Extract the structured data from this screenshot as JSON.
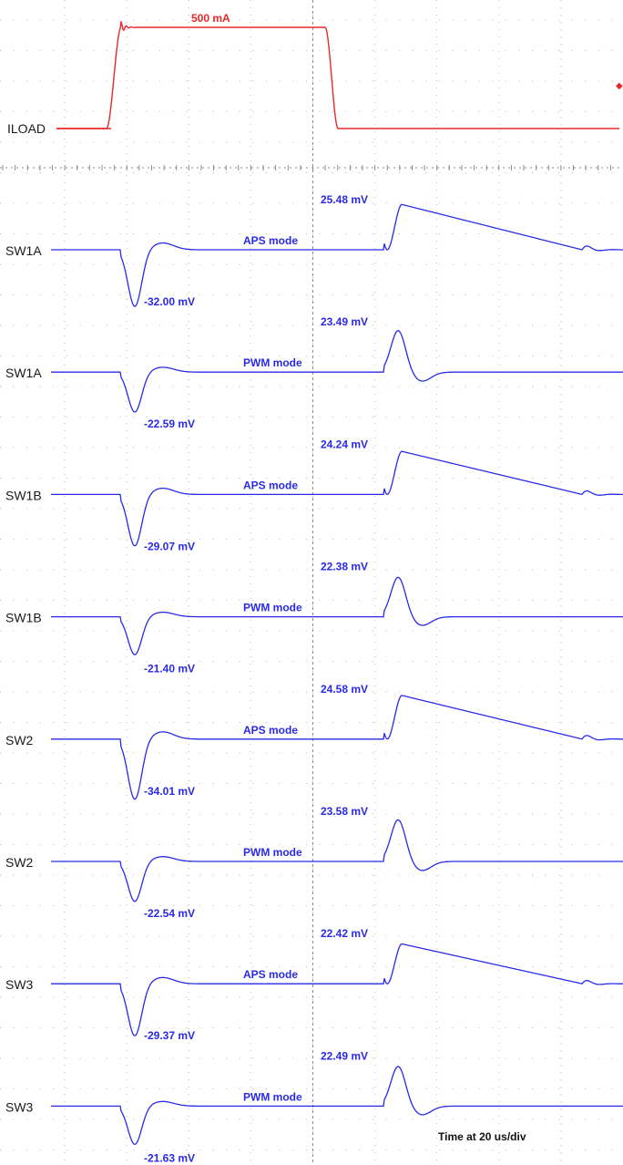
{
  "chart_data": {
    "type": "line",
    "time_scale": "Time at 20 us/div",
    "colors": {
      "load": "#e8282a",
      "sw": "#2a2ae6",
      "grid": "#b8b8b8"
    },
    "load_trace": {
      "name": "ILOAD",
      "level_label": "500 mA",
      "low_ma": 0,
      "high_ma": 500,
      "step_up_div": 1.85,
      "step_down_div": 5.2
    },
    "traces": [
      {
        "name": "SW1A",
        "mode": "APS mode",
        "overshoot": "25.48 mV",
        "undershoot": "-32.00 mV",
        "overshoot_mv": 25.48,
        "undershoot_mv": -32.0
      },
      {
        "name": "SW1A",
        "mode": "PWM mode",
        "overshoot": "23.49 mV",
        "undershoot": "-22.59 mV",
        "overshoot_mv": 23.49,
        "undershoot_mv": -22.59
      },
      {
        "name": "SW1B",
        "mode": "APS mode",
        "overshoot": "24.24 mV",
        "undershoot": "-29.07 mV",
        "overshoot_mv": 24.24,
        "undershoot_mv": -29.07
      },
      {
        "name": "SW1B",
        "mode": "PWM mode",
        "overshoot": "22.38 mV",
        "undershoot": "-21.40 mV",
        "overshoot_mv": 22.38,
        "undershoot_mv": -21.4
      },
      {
        "name": "SW2",
        "mode": "APS mode",
        "overshoot": "24.58 mV",
        "undershoot": "-34.01 mV",
        "overshoot_mv": 24.58,
        "undershoot_mv": -34.01
      },
      {
        "name": "SW2",
        "mode": "PWM mode",
        "overshoot": "23.58 mV",
        "undershoot": "-22.54 mV",
        "overshoot_mv": 23.58,
        "undershoot_mv": -22.54
      },
      {
        "name": "SW3",
        "mode": "APS mode",
        "overshoot": "22.42 mV",
        "undershoot": "-29.37 mV",
        "overshoot_mv": 22.42,
        "undershoot_mv": -29.37
      },
      {
        "name": "SW3",
        "mode": "PWM mode",
        "overshoot": "22.49 mV",
        "undershoot": "-21.63 mV",
        "overshoot_mv": 22.49,
        "undershoot_mv": -21.63
      }
    ]
  }
}
